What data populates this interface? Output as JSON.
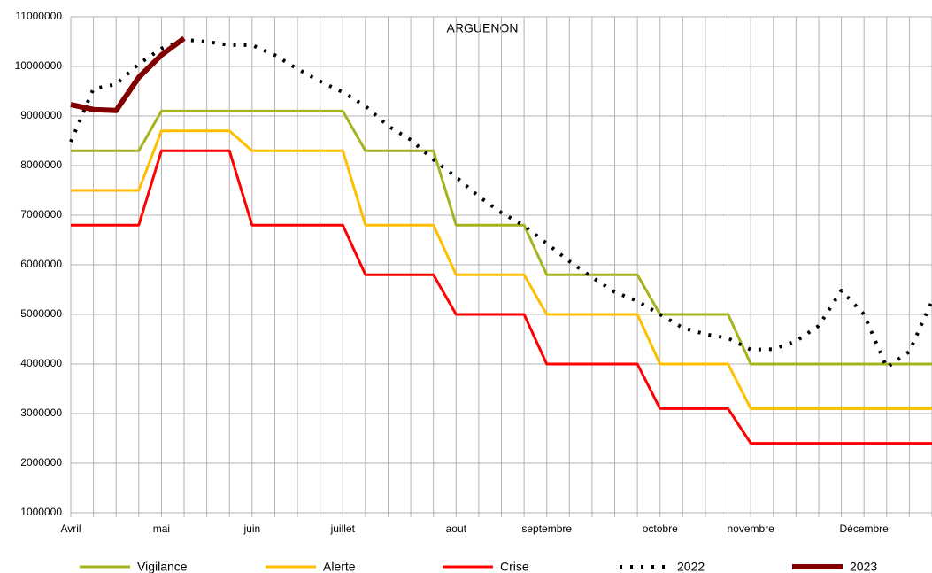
{
  "chart_data": {
    "type": "line",
    "title": "ARGUENON",
    "categories": [
      "Avril",
      null,
      null,
      null,
      "mai",
      null,
      null,
      null,
      "juin",
      null,
      null,
      null,
      "juillet",
      null,
      null,
      null,
      null,
      "aout",
      null,
      null,
      null,
      "septembre",
      null,
      null,
      null,
      null,
      "octobre",
      null,
      null,
      null,
      "novembre",
      null,
      null,
      null,
      null,
      "Décembre",
      null,
      null,
      null
    ],
    "series": [
      {
        "name": "Vigilance",
        "color": "#a5b41e",
        "line_style": "solid",
        "values": [
          8300000,
          8300000,
          8300000,
          8300000,
          9100000,
          9100000,
          9100000,
          9100000,
          9100000,
          9100000,
          9100000,
          9100000,
          9100000,
          8300000,
          8300000,
          8300000,
          8300000,
          6800000,
          6800000,
          6800000,
          6800000,
          5800000,
          5800000,
          5800000,
          5800000,
          5800000,
          5000000,
          5000000,
          5000000,
          5000000,
          4000000,
          4000000,
          4000000,
          4000000,
          4000000,
          4000000,
          4000000,
          4000000,
          4000000
        ]
      },
      {
        "name": "Alerte",
        "color": "#ffbf00",
        "line_style": "solid",
        "values": [
          7500000,
          7500000,
          7500000,
          7500000,
          8700000,
          8700000,
          8700000,
          8700000,
          8300000,
          8300000,
          8300000,
          8300000,
          8300000,
          6800000,
          6800000,
          6800000,
          6800000,
          5800000,
          5800000,
          5800000,
          5800000,
          5000000,
          5000000,
          5000000,
          5000000,
          5000000,
          4000000,
          4000000,
          4000000,
          4000000,
          3100000,
          3100000,
          3100000,
          3100000,
          3100000,
          3100000,
          3100000,
          3100000,
          3100000
        ]
      },
      {
        "name": "Crise",
        "color": "#ff0000",
        "line_style": "solid",
        "values": [
          6800000,
          6800000,
          6800000,
          6800000,
          8300000,
          8300000,
          8300000,
          8300000,
          6800000,
          6800000,
          6800000,
          6800000,
          6800000,
          5800000,
          5800000,
          5800000,
          5800000,
          5000000,
          5000000,
          5000000,
          5000000,
          4000000,
          4000000,
          4000000,
          4000000,
          4000000,
          3100000,
          3100000,
          3100000,
          3100000,
          2400000,
          2400000,
          2400000,
          2400000,
          2400000,
          2400000,
          2400000,
          2400000,
          2400000
        ]
      },
      {
        "name": "2022",
        "color": "#000000",
        "line_style": "dotted",
        "values": [
          8480000,
          9550000,
          9640000,
          10050000,
          10360000,
          10540000,
          10500000,
          10430000,
          10430000,
          10230000,
          9950000,
          9700000,
          9480000,
          9200000,
          8800000,
          8520000,
          8120000,
          7770000,
          7380000,
          7050000,
          6790000,
          6430000,
          6070000,
          5750000,
          5450000,
          5270000,
          5000000,
          4730000,
          4600000,
          4520000,
          4290000,
          4300000,
          4460000,
          4770000,
          5480000,
          5000000,
          3930000,
          4250000,
          5270000
        ]
      },
      {
        "name": "2023",
        "color": "#800000",
        "line_style": "bold",
        "values": [
          9230000,
          9130000,
          9110000,
          9780000,
          10230000,
          10570000,
          null,
          null,
          null,
          null,
          null,
          null,
          null,
          null,
          null,
          null,
          null,
          null,
          null,
          null,
          null,
          null,
          null,
          null,
          null,
          null,
          null,
          null,
          null,
          null,
          null,
          null,
          null,
          null,
          null,
          null,
          null,
          null,
          null
        ]
      }
    ],
    "ylim": [
      1000000,
      11000000
    ],
    "yticks": [
      1000000,
      2000000,
      3000000,
      4000000,
      5000000,
      6000000,
      7000000,
      8000000,
      9000000,
      10000000,
      11000000
    ],
    "grid": true,
    "legend": "bottom"
  }
}
